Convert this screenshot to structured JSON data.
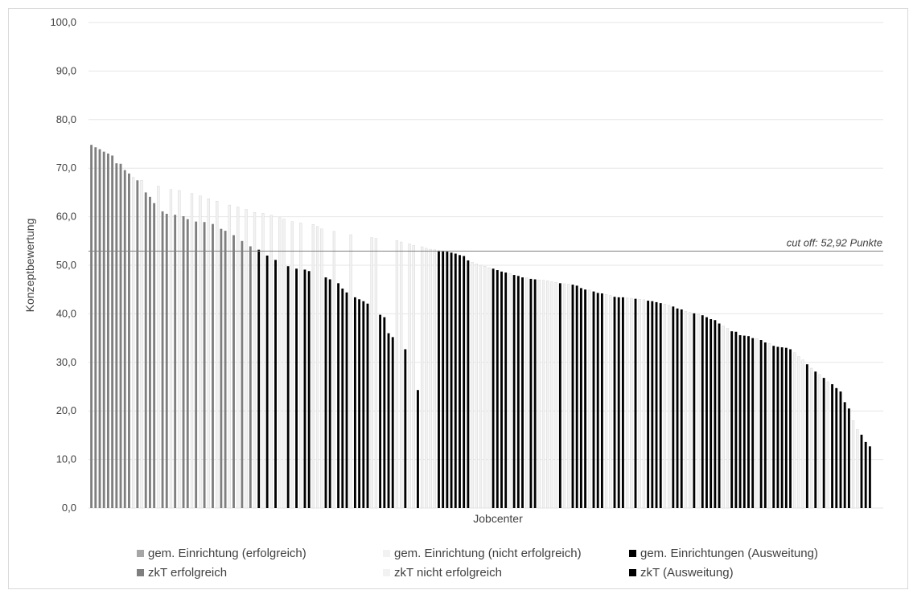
{
  "colors": {
    "gem_erfolgreich": "#a6a6a6",
    "gem_nicht_erfolgreich": "#f2f2f2",
    "gem_ausweitung": "#000000",
    "zkt_erfolgreich": "#7f7f7f",
    "zkt_nicht_erfolgreich": "#f2f2f2",
    "zkt_ausweitung": "#000000",
    "cutoff_line": "#808080",
    "gridline": "#e6e6e6"
  },
  "chart_data": {
    "type": "bar",
    "xlabel": "Jobcenter",
    "ylabel": "Konzeptbewertung",
    "ylim": [
      0,
      100
    ],
    "yticks": [
      "0,0",
      "10,0",
      "20,0",
      "30,0",
      "40,0",
      "50,0",
      "60,0",
      "70,0",
      "80,0",
      "90,0",
      "100,0"
    ],
    "grid": true,
    "legend_position": "bottom",
    "cutoff": {
      "value": 52.92,
      "label": "cut off: 52,92 Punkte"
    },
    "series": [
      {
        "key": "gem_erfolgreich",
        "name": "gem. Einrichtung (erfolgreich)"
      },
      {
        "key": "gem_nicht_erfolgreich",
        "name": "gem. Einrichtung (nicht erfolgreich)"
      },
      {
        "key": "gem_ausweitung",
        "name": "gem. Einrichtungen (Ausweitung)"
      },
      {
        "key": "zkt_erfolgreich",
        "name": "zkT erfolgreich"
      },
      {
        "key": "zkt_nicht_erfolgreich",
        "name": "zkT nicht erfolgreich"
      },
      {
        "key": "zkt_ausweitung",
        "name": "zkT (Ausweitung)"
      }
    ],
    "bars": [
      [
        "zkt_erfolgreich",
        74.8
      ],
      [
        "zkt_erfolgreich",
        74.3
      ],
      [
        "zkt_erfolgreich",
        73.9
      ],
      [
        "zkt_erfolgreich",
        73.4
      ],
      [
        "zkt_erfolgreich",
        73.0
      ],
      [
        "zkt_erfolgreich",
        72.6
      ],
      [
        "zkt_erfolgreich",
        71.0
      ],
      [
        "zkt_erfolgreich",
        70.9
      ],
      [
        "zkt_erfolgreich",
        69.6
      ],
      [
        "zkt_erfolgreich",
        68.9
      ],
      [
        "zkt_nicht_erfolgreich",
        68.1
      ],
      [
        "zkt_erfolgreich",
        67.5
      ],
      [
        "zkt_nicht_erfolgreich",
        67.5
      ],
      [
        "zkt_erfolgreich",
        65.0
      ],
      [
        "zkt_erfolgreich",
        64.1
      ],
      [
        "zkt_erfolgreich",
        62.8
      ],
      [
        "zkt_nicht_erfolgreich",
        66.3
      ],
      [
        "zkt_erfolgreich",
        61.1
      ],
      [
        "zkt_erfolgreich",
        60.6
      ],
      [
        "zkt_nicht_erfolgreich",
        65.6
      ],
      [
        "zkt_erfolgreich",
        60.4
      ],
      [
        "zkt_nicht_erfolgreich",
        65.4
      ],
      [
        "zkt_erfolgreich",
        60.1
      ],
      [
        "zkt_erfolgreich",
        59.5
      ],
      [
        "zkt_nicht_erfolgreich",
        64.8
      ],
      [
        "zkt_erfolgreich",
        59.0
      ],
      [
        "zkt_nicht_erfolgreich",
        64.3
      ],
      [
        "zkt_erfolgreich",
        58.9
      ],
      [
        "zkt_nicht_erfolgreich",
        63.7
      ],
      [
        "zkt_erfolgreich",
        58.5
      ],
      [
        "zkt_nicht_erfolgreich",
        63.2
      ],
      [
        "zkt_erfolgreich",
        57.5
      ],
      [
        "zkt_erfolgreich",
        57.1
      ],
      [
        "zkt_nicht_erfolgreich",
        62.4
      ],
      [
        "zkt_erfolgreich",
        56.2
      ],
      [
        "zkt_nicht_erfolgreich",
        62.0
      ],
      [
        "zkt_erfolgreich",
        55.0
      ],
      [
        "zkt_nicht_erfolgreich",
        61.5
      ],
      [
        "zkt_erfolgreich",
        53.9
      ],
      [
        "zkt_nicht_erfolgreich",
        60.9
      ],
      [
        "gem_ausweitung",
        53.2
      ],
      [
        "zkt_nicht_erfolgreich",
        60.7
      ],
      [
        "gem_ausweitung",
        52.0
      ],
      [
        "zkt_nicht_erfolgreich",
        60.3
      ],
      [
        "gem_ausweitung",
        51.1
      ],
      [
        "zkt_nicht_erfolgreich",
        59.8
      ],
      [
        "zkt_nicht_erfolgreich",
        59.5
      ],
      [
        "gem_ausweitung",
        49.8
      ],
      [
        "zkt_nicht_erfolgreich",
        59.0
      ],
      [
        "gem_ausweitung",
        49.3
      ],
      [
        "zkt_nicht_erfolgreich",
        58.7
      ],
      [
        "gem_ausweitung",
        49.1
      ],
      [
        "gem_ausweitung",
        48.8
      ],
      [
        "zkt_nicht_erfolgreich",
        58.4
      ],
      [
        "zkt_nicht_erfolgreich",
        58.0
      ],
      [
        "zkt_nicht_erfolgreich",
        57.5
      ],
      [
        "gem_ausweitung",
        47.5
      ],
      [
        "gem_ausweitung",
        47.1
      ],
      [
        "zkt_nicht_erfolgreich",
        57.0
      ],
      [
        "gem_ausweitung",
        46.3
      ],
      [
        "gem_ausweitung",
        45.2
      ],
      [
        "gem_ausweitung",
        44.4
      ],
      [
        "zkt_nicht_erfolgreich",
        56.3
      ],
      [
        "gem_ausweitung",
        43.4
      ],
      [
        "gem_ausweitung",
        43.0
      ],
      [
        "gem_ausweitung",
        42.6
      ],
      [
        "gem_ausweitung",
        42.1
      ],
      [
        "zkt_nicht_erfolgreich",
        55.7
      ],
      [
        "zkt_nicht_erfolgreich",
        55.5
      ],
      [
        "gem_ausweitung",
        39.8
      ],
      [
        "gem_ausweitung",
        39.3
      ],
      [
        "gem_ausweitung",
        36.0
      ],
      [
        "gem_ausweitung",
        35.2
      ],
      [
        "zkt_nicht_erfolgreich",
        55.1
      ],
      [
        "zkt_nicht_erfolgreich",
        54.8
      ],
      [
        "gem_ausweitung",
        32.7
      ],
      [
        "zkt_nicht_erfolgreich",
        54.4
      ],
      [
        "zkt_nicht_erfolgreich",
        54.1
      ],
      [
        "gem_ausweitung",
        24.3
      ],
      [
        "zkt_nicht_erfolgreich",
        53.8
      ],
      [
        "zkt_nicht_erfolgreich",
        53.5
      ],
      [
        "zkt_nicht_erfolgreich",
        53.3
      ],
      [
        "zkt_nicht_erfolgreich",
        53.2
      ],
      [
        "gem_ausweitung",
        53.0
      ],
      [
        "gem_ausweitung",
        52.9
      ],
      [
        "gem_ausweitung",
        52.8
      ],
      [
        "gem_ausweitung",
        52.6
      ],
      [
        "gem_ausweitung",
        52.4
      ],
      [
        "gem_ausweitung",
        52.1
      ],
      [
        "gem_ausweitung",
        51.9
      ],
      [
        "gem_ausweitung",
        51.0
      ],
      [
        "zkt_nicht_erfolgreich",
        50.6
      ],
      [
        "zkt_nicht_erfolgreich",
        50.3
      ],
      [
        "zkt_nicht_erfolgreich",
        50.0
      ],
      [
        "zkt_nicht_erfolgreich",
        49.8
      ],
      [
        "zkt_nicht_erfolgreich",
        49.5
      ],
      [
        "gem_ausweitung",
        49.3
      ],
      [
        "gem_ausweitung",
        49.0
      ],
      [
        "gem_ausweitung",
        48.7
      ],
      [
        "gem_ausweitung",
        48.5
      ],
      [
        "zkt_nicht_erfolgreich",
        48.3
      ],
      [
        "gem_ausweitung",
        48.0
      ],
      [
        "gem_ausweitung",
        47.8
      ],
      [
        "gem_ausweitung",
        47.5
      ],
      [
        "zkt_nicht_erfolgreich",
        47.4
      ],
      [
        "gem_ausweitung",
        47.2
      ],
      [
        "gem_ausweitung",
        47.1
      ],
      [
        "zkt_nicht_erfolgreich",
        47.0
      ],
      [
        "zkt_nicht_erfolgreich",
        46.9
      ],
      [
        "zkt_nicht_erfolgreich",
        46.8
      ],
      [
        "zkt_nicht_erfolgreich",
        46.6
      ],
      [
        "zkt_nicht_erfolgreich",
        46.5
      ],
      [
        "gem_ausweitung",
        46.3
      ],
      [
        "zkt_nicht_erfolgreich",
        46.2
      ],
      [
        "zkt_nicht_erfolgreich",
        46.1
      ],
      [
        "gem_ausweitung",
        46.0
      ],
      [
        "gem_ausweitung",
        45.8
      ],
      [
        "gem_ausweitung",
        45.3
      ],
      [
        "gem_ausweitung",
        45.0
      ],
      [
        "zkt_nicht_erfolgreich",
        44.9
      ],
      [
        "gem_ausweitung",
        44.6
      ],
      [
        "gem_ausweitung",
        44.3
      ],
      [
        "gem_ausweitung",
        44.2
      ],
      [
        "zkt_nicht_erfolgreich",
        44.0
      ],
      [
        "zkt_nicht_erfolgreich",
        43.8
      ],
      [
        "gem_ausweitung",
        43.5
      ],
      [
        "gem_ausweitung",
        43.4
      ],
      [
        "gem_ausweitung",
        43.4
      ],
      [
        "zkt_nicht_erfolgreich",
        43.3
      ],
      [
        "zkt_nicht_erfolgreich",
        43.2
      ],
      [
        "gem_ausweitung",
        43.1
      ],
      [
        "zkt_nicht_erfolgreich",
        43.0
      ],
      [
        "zkt_nicht_erfolgreich",
        42.9
      ],
      [
        "gem_ausweitung",
        42.7
      ],
      [
        "gem_ausweitung",
        42.6
      ],
      [
        "gem_ausweitung",
        42.4
      ],
      [
        "gem_ausweitung",
        42.2
      ],
      [
        "zkt_nicht_erfolgreich",
        42.0
      ],
      [
        "zkt_nicht_erfolgreich",
        41.8
      ],
      [
        "gem_ausweitung",
        41.5
      ],
      [
        "gem_ausweitung",
        41.1
      ],
      [
        "gem_ausweitung",
        40.9
      ],
      [
        "zkt_nicht_erfolgreich",
        40.5
      ],
      [
        "zkt_nicht_erfolgreich",
        40.3
      ],
      [
        "gem_ausweitung",
        40.1
      ],
      [
        "zkt_nicht_erfolgreich",
        39.9
      ],
      [
        "gem_ausweitung",
        39.7
      ],
      [
        "gem_ausweitung",
        39.3
      ],
      [
        "gem_ausweitung",
        38.9
      ],
      [
        "gem_ausweitung",
        38.7
      ],
      [
        "gem_ausweitung",
        38.0
      ],
      [
        "zkt_nicht_erfolgreich",
        37.5
      ],
      [
        "zkt_nicht_erfolgreich",
        37.0
      ],
      [
        "gem_ausweitung",
        36.4
      ],
      [
        "gem_ausweitung",
        36.3
      ],
      [
        "gem_ausweitung",
        35.6
      ],
      [
        "gem_ausweitung",
        35.5
      ],
      [
        "gem_ausweitung",
        35.4
      ],
      [
        "gem_ausweitung",
        35.0
      ],
      [
        "zkt_nicht_erfolgreich",
        34.9
      ],
      [
        "gem_ausweitung",
        34.6
      ],
      [
        "gem_ausweitung",
        34.1
      ],
      [
        "zkt_nicht_erfolgreich",
        33.9
      ],
      [
        "gem_ausweitung",
        33.4
      ],
      [
        "gem_ausweitung",
        33.2
      ],
      [
        "gem_ausweitung",
        33.1
      ],
      [
        "gem_ausweitung",
        33.0
      ],
      [
        "gem_ausweitung",
        32.7
      ],
      [
        "zkt_nicht_erfolgreich",
        32.0
      ],
      [
        "zkt_nicht_erfolgreich",
        31.2
      ],
      [
        "zkt_nicht_erfolgreich",
        30.5
      ],
      [
        "gem_ausweitung",
        29.6
      ],
      [
        "zkt_nicht_erfolgreich",
        28.8
      ],
      [
        "gem_ausweitung",
        28.1
      ],
      [
        "zkt_nicht_erfolgreich",
        27.5
      ],
      [
        "gem_ausweitung",
        26.8
      ],
      [
        "zkt_nicht_erfolgreich",
        26.0
      ],
      [
        "gem_ausweitung",
        25.5
      ],
      [
        "gem_ausweitung",
        24.7
      ],
      [
        "gem_ausweitung",
        24.0
      ],
      [
        "gem_ausweitung",
        21.8
      ],
      [
        "gem_ausweitung",
        20.5
      ],
      [
        "zkt_nicht_erfolgreich",
        18.0
      ],
      [
        "zkt_nicht_erfolgreich",
        16.2
      ],
      [
        "gem_ausweitung",
        15.1
      ],
      [
        "gem_ausweitung",
        13.6
      ],
      [
        "gem_ausweitung",
        12.7
      ]
    ]
  }
}
